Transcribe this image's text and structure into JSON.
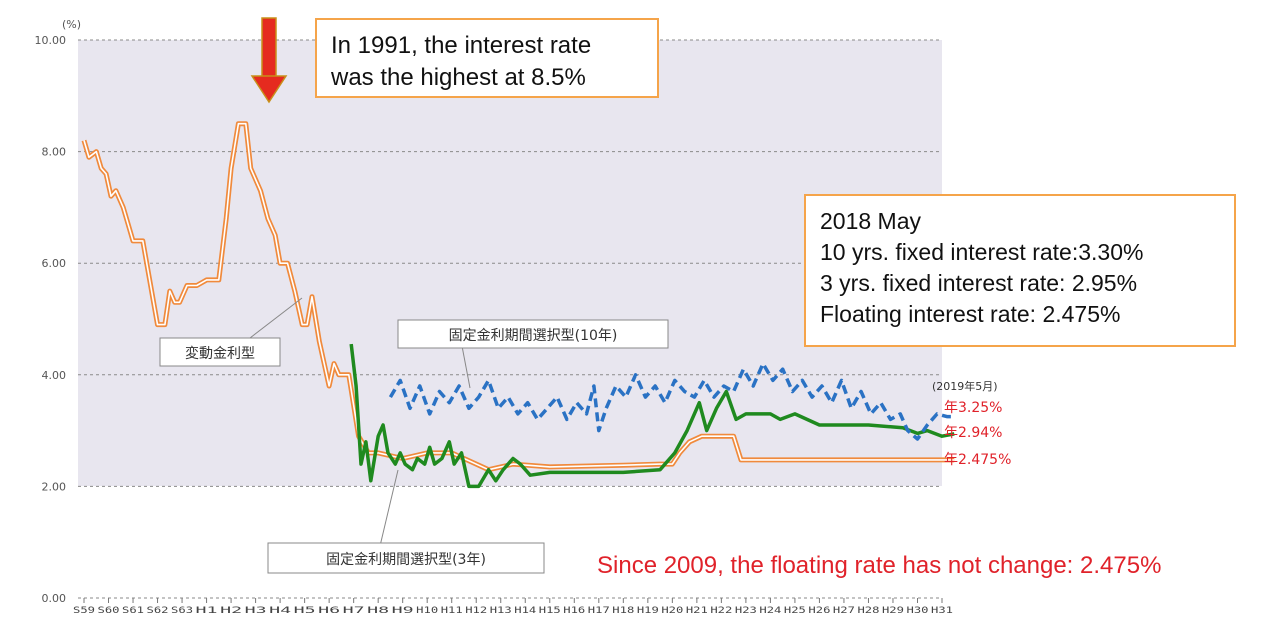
{
  "chart_data": {
    "type": "line",
    "yunit": "(%)",
    "ylim": [
      0,
      10
    ],
    "yticks": [
      "0.00",
      "2.00",
      "4.00",
      "6.00",
      "8.00",
      "10.00"
    ],
    "x_tick_labels": [
      "S59",
      "S60",
      "S61",
      "S62",
      "S63",
      "H1",
      "H2",
      "H3",
      "H4",
      "H5",
      "H6",
      "H7",
      "H8",
      "H9",
      "H10",
      "H11",
      "H12",
      "H13",
      "H14",
      "H15",
      "H16",
      "H17",
      "H18",
      "H19",
      "H20",
      "H21",
      "H22",
      "H23",
      "H24",
      "H25",
      "H26",
      "H27",
      "H28",
      "H29",
      "H30",
      "H31"
    ],
    "grid": true,
    "series": [
      {
        "name": "変動金利型",
        "color": "#f08a3c",
        "style": "double-line",
        "points": [
          [
            0,
            8.2
          ],
          [
            0.2,
            7.9
          ],
          [
            0.5,
            8.0
          ],
          [
            0.7,
            7.7
          ],
          [
            0.9,
            7.6
          ],
          [
            1.1,
            7.2
          ],
          [
            1.3,
            7.3
          ],
          [
            1.6,
            7.0
          ],
          [
            1.8,
            6.7
          ],
          [
            2.0,
            6.4
          ],
          [
            2.4,
            6.4
          ],
          [
            2.6,
            5.9
          ],
          [
            2.8,
            5.4
          ],
          [
            3.0,
            4.9
          ],
          [
            3.3,
            4.9
          ],
          [
            3.5,
            5.5
          ],
          [
            3.7,
            5.3
          ],
          [
            3.9,
            5.3
          ],
          [
            4.2,
            5.6
          ],
          [
            4.6,
            5.6
          ],
          [
            5.0,
            5.7
          ],
          [
            5.5,
            5.7
          ],
          [
            5.8,
            6.8
          ],
          [
            6.0,
            7.7
          ],
          [
            6.3,
            8.5
          ],
          [
            6.6,
            8.5
          ],
          [
            6.8,
            7.7
          ],
          [
            7.2,
            7.3
          ],
          [
            7.5,
            6.8
          ],
          [
            7.8,
            6.5
          ],
          [
            8.0,
            6.0
          ],
          [
            8.3,
            6.0
          ],
          [
            8.6,
            5.5
          ],
          [
            8.9,
            4.9
          ],
          [
            9.1,
            4.9
          ],
          [
            9.3,
            5.4
          ],
          [
            9.6,
            4.6
          ],
          [
            9.8,
            4.2
          ],
          [
            10.0,
            3.8
          ],
          [
            10.2,
            4.2
          ],
          [
            10.4,
            4.0
          ],
          [
            10.8,
            4.0
          ],
          [
            11.2,
            2.9
          ],
          [
            11.6,
            2.6
          ],
          [
            12.0,
            2.6
          ],
          [
            13.0,
            2.5
          ],
          [
            14.0,
            2.6
          ],
          [
            15.0,
            2.6
          ],
          [
            16.5,
            2.3
          ],
          [
            17.5,
            2.4
          ],
          [
            19.0,
            2.35
          ],
          [
            22.0,
            2.38
          ],
          [
            23.5,
            2.4
          ],
          [
            24.0,
            2.4
          ],
          [
            24.3,
            2.6
          ],
          [
            24.7,
            2.8
          ],
          [
            25.2,
            2.9
          ],
          [
            26.5,
            2.9
          ],
          [
            26.8,
            2.475
          ],
          [
            35.5,
            2.475
          ]
        ]
      },
      {
        "name": "固定金利期間選択型(3年)",
        "color": "#1f8a1f",
        "style": "solid",
        "points": [
          [
            10.9,
            4.55
          ],
          [
            11.1,
            3.8
          ],
          [
            11.3,
            2.4
          ],
          [
            11.5,
            2.8
          ],
          [
            11.7,
            2.1
          ],
          [
            12.0,
            2.9
          ],
          [
            12.2,
            3.1
          ],
          [
            12.4,
            2.6
          ],
          [
            12.7,
            2.4
          ],
          [
            12.9,
            2.6
          ],
          [
            13.1,
            2.4
          ],
          [
            13.4,
            2.3
          ],
          [
            13.6,
            2.5
          ],
          [
            13.9,
            2.4
          ],
          [
            14.1,
            2.7
          ],
          [
            14.3,
            2.4
          ],
          [
            14.6,
            2.5
          ],
          [
            14.9,
            2.8
          ],
          [
            15.1,
            2.4
          ],
          [
            15.4,
            2.6
          ],
          [
            15.7,
            2.0
          ],
          [
            16.1,
            2.0
          ],
          [
            16.5,
            2.3
          ],
          [
            16.8,
            2.1
          ],
          [
            17.1,
            2.3
          ],
          [
            17.5,
            2.5
          ],
          [
            17.8,
            2.4
          ],
          [
            18.2,
            2.2
          ],
          [
            19.0,
            2.25
          ],
          [
            20.0,
            2.25
          ],
          [
            22.0,
            2.25
          ],
          [
            23.5,
            2.3
          ],
          [
            24.1,
            2.6
          ],
          [
            24.6,
            3.0
          ],
          [
            25.1,
            3.5
          ],
          [
            25.4,
            3.0
          ],
          [
            25.8,
            3.4
          ],
          [
            26.2,
            3.7
          ],
          [
            26.6,
            3.2
          ],
          [
            27.0,
            3.3
          ],
          [
            28.0,
            3.3
          ],
          [
            28.4,
            3.2
          ],
          [
            29.0,
            3.3
          ],
          [
            30.0,
            3.1
          ],
          [
            32.0,
            3.1
          ],
          [
            33.4,
            3.05
          ],
          [
            34.0,
            2.95
          ],
          [
            34.4,
            3.0
          ],
          [
            35.0,
            2.9
          ],
          [
            35.5,
            2.94
          ]
        ]
      },
      {
        "name": "固定金利期間選択型(10年)",
        "color": "#2a72c4",
        "style": "dashed",
        "points": [
          [
            12.5,
            3.6
          ],
          [
            12.9,
            3.9
          ],
          [
            13.3,
            3.4
          ],
          [
            13.7,
            3.8
          ],
          [
            14.1,
            3.3
          ],
          [
            14.5,
            3.7
          ],
          [
            14.9,
            3.5
          ],
          [
            15.3,
            3.8
          ],
          [
            15.7,
            3.4
          ],
          [
            16.1,
            3.6
          ],
          [
            16.5,
            3.9
          ],
          [
            16.9,
            3.4
          ],
          [
            17.3,
            3.6
          ],
          [
            17.7,
            3.3
          ],
          [
            18.1,
            3.5
          ],
          [
            18.5,
            3.2
          ],
          [
            18.9,
            3.4
          ],
          [
            19.3,
            3.6
          ],
          [
            19.7,
            3.2
          ],
          [
            20.1,
            3.5
          ],
          [
            20.5,
            3.3
          ],
          [
            20.8,
            3.8
          ],
          [
            21.0,
            3.0
          ],
          [
            21.3,
            3.4
          ],
          [
            21.7,
            3.8
          ],
          [
            22.1,
            3.6
          ],
          [
            22.5,
            4.0
          ],
          [
            22.9,
            3.6
          ],
          [
            23.3,
            3.8
          ],
          [
            23.7,
            3.5
          ],
          [
            24.1,
            3.9
          ],
          [
            24.5,
            3.7
          ],
          [
            24.9,
            3.6
          ],
          [
            25.3,
            3.9
          ],
          [
            25.7,
            3.6
          ],
          [
            26.1,
            3.8
          ],
          [
            26.5,
            3.7
          ],
          [
            26.9,
            4.1
          ],
          [
            27.3,
            3.8
          ],
          [
            27.7,
            4.2
          ],
          [
            28.1,
            3.9
          ],
          [
            28.5,
            4.1
          ],
          [
            28.9,
            3.7
          ],
          [
            29.3,
            3.9
          ],
          [
            29.7,
            3.6
          ],
          [
            30.1,
            3.8
          ],
          [
            30.5,
            3.5
          ],
          [
            30.9,
            3.9
          ],
          [
            31.3,
            3.4
          ],
          [
            31.7,
            3.7
          ],
          [
            32.1,
            3.3
          ],
          [
            32.5,
            3.5
          ],
          [
            32.9,
            3.2
          ],
          [
            33.3,
            3.3
          ],
          [
            33.6,
            3.0
          ],
          [
            34.0,
            2.85
          ],
          [
            34.4,
            3.1
          ],
          [
            34.8,
            3.3
          ],
          [
            35.2,
            3.25
          ],
          [
            35.5,
            3.25
          ]
        ]
      }
    ],
    "series_labels": {
      "floating": "変動金利型",
      "fixed10": "固定金利期間選択型(10年)",
      "fixed3": "固定金利期間選択型(3年)"
    },
    "end_label_date": "(2019年5月)",
    "end_values": {
      "fixed10": "年3.25%",
      "fixed3": "年2.94%",
      "floating": "年2.475%"
    }
  },
  "callouts": {
    "peak_line1": "In 1991, the interest rate",
    "peak_line2": "was the highest at 8.5%",
    "summary_line1": "2018 May",
    "summary_line2": "10 yrs. fixed interest rate:3.30%",
    "summary_line3": "3 yrs. fixed interest rate: 2.95%",
    "summary_line4": "Floating interest rate:  2.475%",
    "since_note": "Since 2009, the floating rate has not change: 2.475%"
  },
  "colors": {
    "plot_background": "#e8e6ef",
    "arrow": "#e52b1f",
    "callout_border": "#f5a44a",
    "end_value_text": "#e0222a"
  }
}
